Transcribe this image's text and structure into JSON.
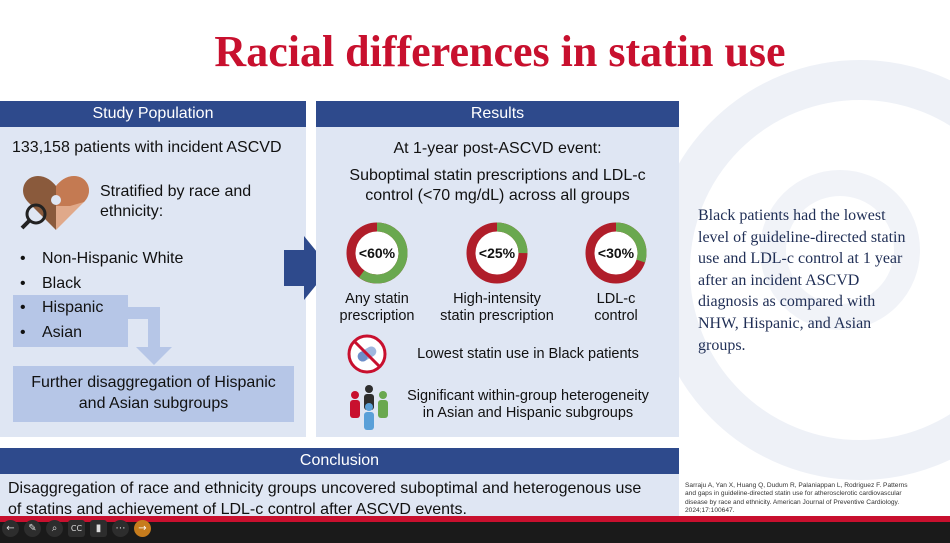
{
  "slide": {
    "title": "Racial differences in statin use"
  },
  "study_population": {
    "header": "Study Population",
    "patients": "133,158 patients with incident ASCVD",
    "stratified": [
      "Stratified by race and",
      "ethnicity:"
    ],
    "groups": [
      "Non-Hispanic White",
      "Black",
      "Hispanic",
      "Asian"
    ],
    "bullet": "•",
    "further": [
      "Further disaggregation of Hispanic",
      "and Asian subgroups"
    ]
  },
  "results": {
    "header": "Results",
    "timepoint": "At 1-year post-ASCVD event:",
    "suboptimal": [
      "Suboptimal statin prescriptions and LDL-c",
      "control (<70 mg/dL) across all groups"
    ],
    "donuts": [
      {
        "label": "<60%",
        "fraction": 0.6,
        "caption": [
          "Any statin",
          "prescription"
        ]
      },
      {
        "label": "<25%",
        "fraction": 0.25,
        "caption": [
          "High-intensity",
          "statin prescription"
        ]
      },
      {
        "label": "<30%",
        "fraction": 0.3,
        "caption": [
          "LDL-c",
          "control"
        ]
      }
    ],
    "lowest": "Lowest statin use in Black patients",
    "heterogeneity": [
      "Significant within-group heterogeneity",
      "in Asian and Hispanic subgroups"
    ]
  },
  "conclusion": {
    "header": "Conclusion",
    "body": [
      "Disaggregation of race and ethnicity groups uncovered suboptimal and heterogenous use",
      "of statins and achievement of LDL-c control after ASCVD events."
    ]
  },
  "side_note": [
    "Black patients had the lowest",
    "level of guideline-directed statin",
    "use and LDL-c control at 1 year",
    "after an incident ASCVD",
    "diagnosis as compared with",
    "NHW, Hispanic, and Asian",
    "groups."
  ],
  "reference": [
    "Sarraju A, Yan X, Huang Q, Dudum R, Palaniappan L, Rodriguez F. Patterns",
    "and gaps in guideline-directed statin use for atherosclerotic cardiovascular",
    "disease by race and ethnicity. American Journal of Preventive Cardiology.",
    "2024;17:100647."
  ],
  "colors": {
    "title_red": "#c8102e",
    "panel_blue": "#2e4a8c",
    "panel_light": "#dfe6f3",
    "highlight": "#b6c6e7",
    "donut_red": "#b01e2a",
    "donut_green": "#6aa84f"
  },
  "toolbar": {
    "icons": [
      "back-icon",
      "pen-icon",
      "zoom-icon",
      "captions-icon",
      "camera-icon",
      "more-icon",
      "next-icon"
    ],
    "glyphs": [
      "←",
      "✎",
      "⌕",
      "CC",
      "▮",
      "⋯",
      "→"
    ]
  }
}
